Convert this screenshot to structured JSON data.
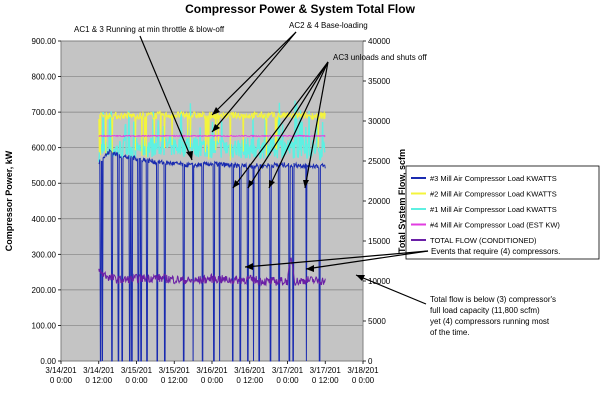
{
  "chart_data": {
    "type": "line",
    "title": "Compressor Power & System Total Flow",
    "ylabel": "Compressor Power, kW",
    "y2label": "Total System Flow, scfm",
    "ylim": [
      0,
      900
    ],
    "y2lim": [
      0,
      40000
    ],
    "grid": true,
    "legend_position": "right",
    "x_ticks": [
      [
        "3/14/201",
        "0 0:00"
      ],
      [
        "3/14/201",
        "0 12:00"
      ],
      [
        "3/15/201",
        "0 0:00"
      ],
      [
        "3/15/201",
        "0 12:00"
      ],
      [
        "3/16/201",
        "0 0:00"
      ],
      [
        "3/16/201",
        "0 12:00"
      ],
      [
        "3/17/201",
        "0 0:00"
      ],
      [
        "3/17/201",
        "0 12:00"
      ],
      [
        "3/18/201",
        "0 0:00"
      ]
    ],
    "y_ticks": [
      "0.00",
      "100.00",
      "200.00",
      "300.00",
      "400.00",
      "500.00",
      "600.00",
      "700.00",
      "800.00",
      "900.00"
    ],
    "y2_ticks": [
      "0",
      "5000",
      "10000",
      "15000",
      "20000",
      "25000",
      "30000",
      "35000",
      "40000"
    ],
    "x_range": [
      0,
      8
    ],
    "data_start": 1.0,
    "data_end": 7.0,
    "series": [
      {
        "name": "#3 Mill Air Compressor Load KWATTS",
        "color": "#1a2bb0",
        "axis": "left",
        "base": 555,
        "points": [
          [
            1.0,
            560
          ],
          [
            1.3,
            590
          ],
          [
            1.6,
            575
          ],
          [
            2.0,
            570
          ],
          [
            2.5,
            560
          ],
          [
            3.0,
            555
          ],
          [
            3.5,
            550
          ],
          [
            4.0,
            555
          ],
          [
            4.5,
            550
          ],
          [
            5.0,
            548
          ],
          [
            5.5,
            550
          ],
          [
            6.0,
            552
          ],
          [
            6.5,
            550
          ],
          [
            7.0,
            548
          ]
        ],
        "drops": [
          1.05,
          1.1,
          1.35,
          1.52,
          1.62,
          1.82,
          1.88,
          2.05,
          2.12,
          2.28,
          2.55,
          2.75,
          3.25,
          3.5,
          3.75,
          4.05,
          4.2,
          4.55,
          4.75,
          4.95,
          5.1,
          5.25,
          5.55,
          5.78,
          6.05,
          6.15,
          6.5,
          6.85
        ]
      },
      {
        "name": "#2 Mill Air Compressor Load KWATTS",
        "color": "#f4f43c",
        "axis": "left",
        "points": [
          [
            1.0,
            690
          ],
          [
            2.0,
            690
          ],
          [
            3.0,
            692
          ],
          [
            4.0,
            690
          ],
          [
            5.0,
            691
          ],
          [
            6.0,
            690
          ],
          [
            7.0,
            690
          ]
        ]
      },
      {
        "name": "#1 Mill Air Compressor Load KWATTS",
        "color": "#5ef0e2",
        "axis": "left",
        "points": [
          [
            1.0,
            590
          ],
          [
            2.0,
            600
          ],
          [
            3.0,
            605
          ],
          [
            4.0,
            600
          ],
          [
            5.0,
            598
          ],
          [
            6.0,
            600
          ],
          [
            7.0,
            595
          ]
        ]
      },
      {
        "name": "#4 Mill Air Compressor Load (EST KW)",
        "color": "#e23de0",
        "axis": "left",
        "points": [
          [
            1.0,
            633
          ],
          [
            2.0,
            633
          ],
          [
            3.0,
            633
          ],
          [
            4.0,
            633
          ],
          [
            5.0,
            633
          ],
          [
            6.0,
            633
          ],
          [
            7.0,
            633
          ]
        ]
      },
      {
        "name": "TOTAL FLOW (CONDITIONED)",
        "color": "#6a1fa6",
        "axis": "right",
        "points": [
          [
            1.0,
            11200
          ],
          [
            1.3,
            10400
          ],
          [
            1.6,
            10100
          ],
          [
            2.0,
            10300
          ],
          [
            2.5,
            10400
          ],
          [
            3.0,
            10200
          ],
          [
            3.5,
            10000
          ],
          [
            4.0,
            10300
          ],
          [
            4.5,
            10100
          ],
          [
            5.0,
            10200
          ],
          [
            5.5,
            9900
          ],
          [
            6.0,
            10000
          ],
          [
            6.1,
            13000
          ],
          [
            6.2,
            9900
          ],
          [
            6.5,
            10100
          ],
          [
            7.0,
            10000
          ]
        ]
      }
    ],
    "annotations": [
      {
        "text": "AC1 & 3 Running at min throttle & blow-off"
      },
      {
        "text": "AC2 & 4 Base-loading"
      },
      {
        "text": "AC3 unloads and shuts off"
      },
      {
        "text": "Events that require (4) compressors."
      },
      {
        "text": "Total flow is below (3) compressor's"
      },
      {
        "text": "full load capacity (11,800 scfm)"
      },
      {
        "text": "yet (4) compressors running most"
      },
      {
        "text": "of the time."
      }
    ]
  }
}
